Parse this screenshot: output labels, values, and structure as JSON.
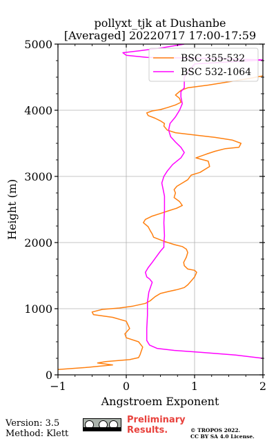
{
  "chart_data": {
    "type": "line",
    "title": "pollyxt_tjk at Dushanbe",
    "subtitle": "[Averaged] 20220717 17:00-17:59",
    "xlabel": "Angstroem Exponent",
    "ylabel": "Height (m)",
    "xlim": [
      -1,
      2
    ],
    "ylim": [
      0,
      5000
    ],
    "xticks": [
      -1,
      0,
      1,
      2
    ],
    "yticks": [
      0,
      1000,
      2000,
      3000,
      4000,
      5000
    ],
    "xtick_labels": [
      "−1",
      "0",
      "1",
      "2"
    ],
    "ytick_labels": [
      "0",
      "1000",
      "2000",
      "3000",
      "4000",
      "5000"
    ],
    "grid": true,
    "legend_position": "top-right",
    "series": [
      {
        "name": "BSC 355-532",
        "color": "#ff7f0e",
        "points": [
          [
            -1.0,
            80
          ],
          [
            -0.6,
            110
          ],
          [
            -0.4,
            130
          ],
          [
            -0.2,
            150
          ],
          [
            -0.42,
            180
          ],
          [
            -0.3,
            200
          ],
          [
            0.05,
            230
          ],
          [
            0.18,
            260
          ],
          [
            0.2,
            300
          ],
          [
            0.22,
            360
          ],
          [
            0.24,
            420
          ],
          [
            0.18,
            500
          ],
          [
            0.0,
            560
          ],
          [
            -0.02,
            620
          ],
          [
            0.05,
            700
          ],
          [
            0.0,
            810
          ],
          [
            -0.2,
            870
          ],
          [
            -0.48,
            910
          ],
          [
            -0.5,
            950
          ],
          [
            -0.35,
            990
          ],
          [
            -0.1,
            1010
          ],
          [
            0.1,
            1040
          ],
          [
            0.28,
            1080
          ],
          [
            0.35,
            1120
          ],
          [
            0.42,
            1180
          ],
          [
            0.5,
            1230
          ],
          [
            0.62,
            1260
          ],
          [
            0.75,
            1290
          ],
          [
            0.85,
            1320
          ],
          [
            0.9,
            1360
          ],
          [
            0.95,
            1420
          ],
          [
            1.0,
            1480
          ],
          [
            1.03,
            1550
          ],
          [
            1.0,
            1580
          ],
          [
            0.9,
            1600
          ],
          [
            0.85,
            1650
          ],
          [
            0.84,
            1700
          ],
          [
            0.88,
            1780
          ],
          [
            0.9,
            1850
          ],
          [
            0.88,
            1900
          ],
          [
            0.82,
            1940
          ],
          [
            0.7,
            1970
          ],
          [
            0.55,
            2020
          ],
          [
            0.4,
            2080
          ],
          [
            0.38,
            2130
          ],
          [
            0.35,
            2180
          ],
          [
            0.32,
            2240
          ],
          [
            0.25,
            2300
          ],
          [
            0.28,
            2350
          ],
          [
            0.38,
            2400
          ],
          [
            0.5,
            2440
          ],
          [
            0.62,
            2480
          ],
          [
            0.74,
            2520
          ],
          [
            0.82,
            2560
          ],
          [
            0.78,
            2620
          ],
          [
            0.7,
            2680
          ],
          [
            0.72,
            2750
          ],
          [
            0.7,
            2800
          ],
          [
            0.74,
            2850
          ],
          [
            0.82,
            2900
          ],
          [
            0.9,
            2950
          ],
          [
            0.95,
            3020
          ],
          [
            1.08,
            3060
          ],
          [
            1.22,
            3150
          ],
          [
            1.2,
            3230
          ],
          [
            1.02,
            3280
          ],
          [
            1.18,
            3340
          ],
          [
            1.3,
            3380
          ],
          [
            1.45,
            3420
          ],
          [
            1.65,
            3440
          ],
          [
            1.68,
            3500
          ],
          [
            1.55,
            3550
          ],
          [
            1.3,
            3590
          ],
          [
            1.05,
            3620
          ],
          [
            0.72,
            3660
          ],
          [
            0.6,
            3700
          ],
          [
            0.55,
            3760
          ],
          [
            0.56,
            3800
          ],
          [
            0.5,
            3840
          ],
          [
            0.42,
            3880
          ],
          [
            0.32,
            3920
          ],
          [
            0.3,
            3960
          ],
          [
            0.38,
            3990
          ],
          [
            0.5,
            4010
          ],
          [
            0.6,
            4040
          ],
          [
            0.72,
            4080
          ],
          [
            0.8,
            4120
          ],
          [
            0.78,
            4180
          ],
          [
            0.72,
            4230
          ],
          [
            0.8,
            4300
          ],
          [
            0.9,
            4340
          ],
          [
            1.2,
            4380
          ],
          [
            1.5,
            4430
          ],
          [
            1.8,
            4480
          ],
          [
            2.0,
            4520
          ]
        ]
      },
      {
        "name": "BSC 532-1064",
        "color": "#ff00ff",
        "points": [
          [
            2.0,
            250
          ],
          [
            1.6,
            300
          ],
          [
            1.1,
            340
          ],
          [
            0.7,
            370
          ],
          [
            0.45,
            400
          ],
          [
            0.34,
            450
          ],
          [
            0.3,
            520
          ],
          [
            0.3,
            700
          ],
          [
            0.31,
            900
          ],
          [
            0.31,
            1100
          ],
          [
            0.33,
            1250
          ],
          [
            0.38,
            1400
          ],
          [
            0.34,
            1450
          ],
          [
            0.3,
            1480
          ],
          [
            0.28,
            1550
          ],
          [
            0.32,
            1620
          ],
          [
            0.38,
            1700
          ],
          [
            0.45,
            1800
          ],
          [
            0.5,
            1870
          ],
          [
            0.55,
            1930
          ],
          [
            0.55,
            2000
          ],
          [
            0.56,
            2100
          ],
          [
            0.55,
            2300
          ],
          [
            0.56,
            2500
          ],
          [
            0.56,
            2700
          ],
          [
            0.54,
            2800
          ],
          [
            0.52,
            2900
          ],
          [
            0.55,
            3000
          ],
          [
            0.6,
            3080
          ],
          [
            0.68,
            3180
          ],
          [
            0.8,
            3280
          ],
          [
            0.85,
            3360
          ],
          [
            0.8,
            3440
          ],
          [
            0.72,
            3520
          ],
          [
            0.65,
            3600
          ],
          [
            0.62,
            3700
          ],
          [
            0.64,
            3800
          ],
          [
            0.72,
            3900
          ],
          [
            0.78,
            4000
          ],
          [
            0.82,
            4100
          ],
          [
            0.8,
            4200
          ],
          [
            0.8,
            4280
          ],
          [
            0.85,
            4340
          ],
          [
            0.85,
            4400
          ],
          [
            0.85,
            4500
          ],
          [
            0.92,
            4600
          ],
          [
            1.0,
            4700
          ],
          [
            2.0,
            4760
          ],
          [
            1.4,
            4780
          ],
          [
            0.3,
            4800
          ],
          [
            0.0,
            4830
          ],
          [
            -0.05,
            4870
          ],
          [
            0.2,
            4900
          ],
          [
            0.5,
            4940
          ],
          [
            0.85,
            5000
          ]
        ]
      }
    ]
  },
  "footer": {
    "version": "Version: 3.5",
    "method": "Method: Klett",
    "preliminary_line1": "Preliminary",
    "preliminary_line2": "Results.",
    "copyright_line1": "© TROPOS 2022.",
    "copyright_line2": "CC BY SA 4.0 License."
  },
  "icons": {
    "license_badge": "cc-by-sa-badge-icon"
  }
}
